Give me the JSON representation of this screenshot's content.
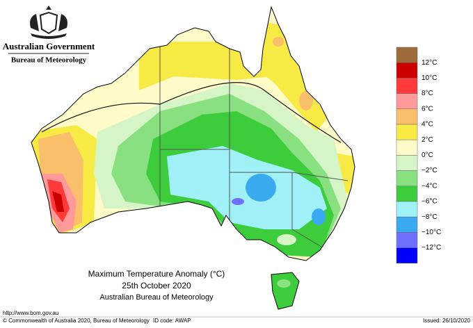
{
  "header": {
    "government": "Australian Government",
    "bureau": "Bureau of Meteorology"
  },
  "map": {
    "title": "Maximum Temperature Anomaly (°C)",
    "date": "25th October 2020",
    "source": "Australian Bureau of Meteorology"
  },
  "legend": {
    "colors": [
      "#9e6b3a",
      "#cc0000",
      "#ff3a3a",
      "#ff9a9a",
      "#f9bf6b",
      "#f7ea45",
      "#fffbc8",
      "#d6f5c6",
      "#88e080",
      "#3ccc3c",
      "#a0f0f8",
      "#3aaaf0",
      "#7070ff",
      "#0000ff"
    ],
    "labels": [
      "12°C",
      "10°C",
      "8°C",
      "6°C",
      "4°C",
      "2°C",
      "0°C",
      "−2°C",
      "−4°C",
      "−6°C",
      "−8°C",
      "−10°C",
      "−12°C"
    ]
  },
  "footer": {
    "url": "http://www.bom.gov.au",
    "copyright": "© Commonwealth of Australia 2020, Bureau of Meteorology",
    "id_code": "ID code: AWAP",
    "issued": "Issued: 26/10/2020"
  }
}
